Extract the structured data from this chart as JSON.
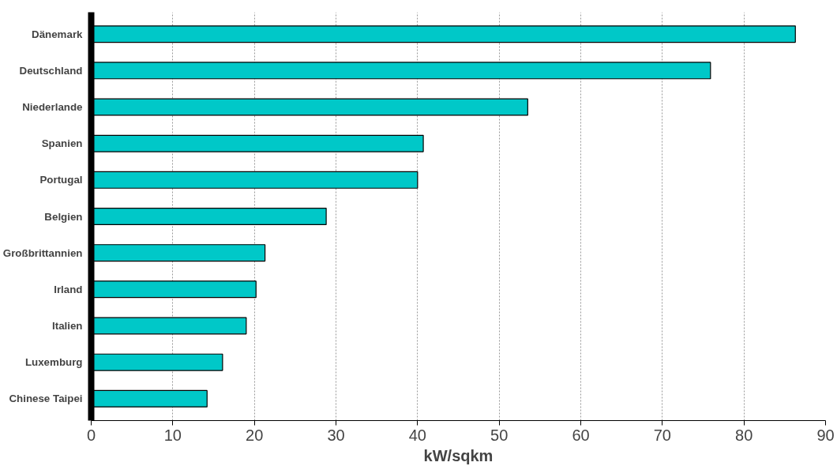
{
  "chart_data": {
    "type": "bar",
    "orientation": "horizontal",
    "xlabel": "kW/sqkm",
    "categories": [
      "Dänemark",
      "Deutschland",
      "Niederlande",
      "Spanien",
      "Portugal",
      "Belgien",
      "Großbrittannien",
      "Irland",
      "Italien",
      "Luxemburg",
      "Chinese Taipei"
    ],
    "values": [
      86.3,
      75.9,
      53.5,
      40.7,
      40.0,
      28.8,
      21.3,
      20.2,
      19.0,
      16.1,
      14.2
    ],
    "color": "#00c8c8",
    "xlim": [
      0,
      90
    ],
    "xticks": [
      0,
      10,
      20,
      30,
      40,
      50,
      60,
      70,
      80,
      90
    ],
    "grid": "x"
  }
}
